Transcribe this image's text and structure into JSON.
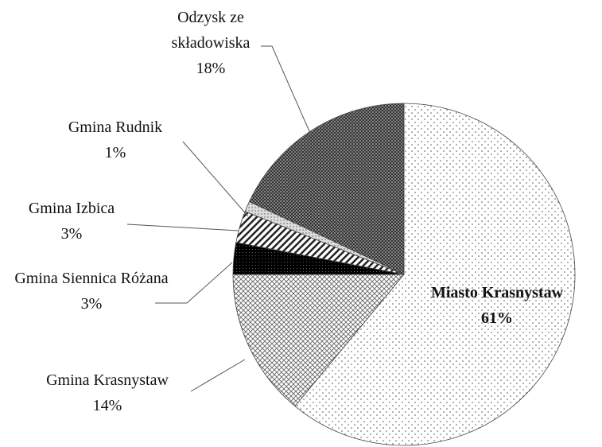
{
  "chart_data": {
    "type": "pie",
    "categories": [
      "Miasto Krasnystaw",
      "Gmina Krasnystaw",
      "Gmina Siennica Różana",
      "Gmina Izbica",
      "Gmina Rudnik",
      "Odzysk ze składowiska"
    ],
    "values": [
      61,
      14,
      3,
      3,
      1,
      18
    ],
    "value_labels": [
      "61%",
      "14%",
      "3%",
      "3%",
      "1%",
      "18%"
    ]
  }
}
